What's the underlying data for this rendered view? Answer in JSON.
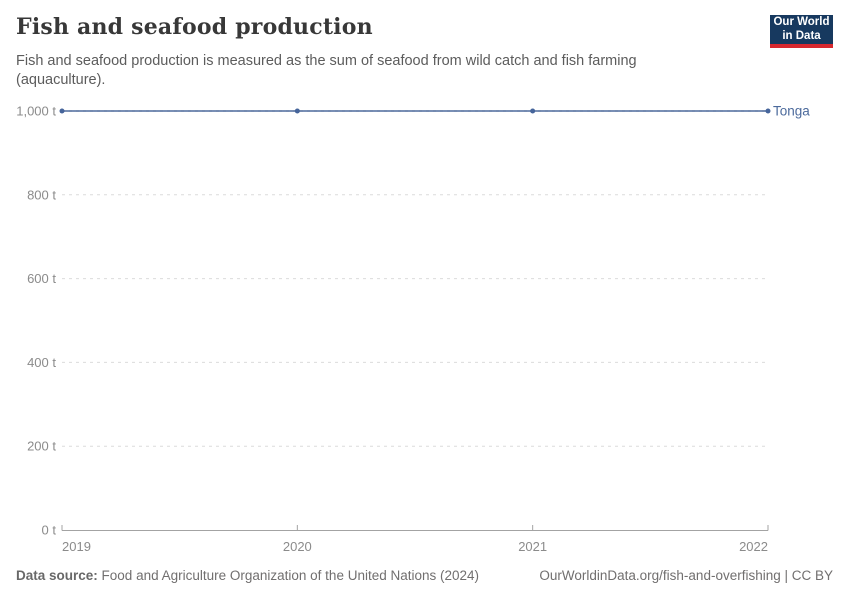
{
  "header": {
    "title": "Fish and seafood production",
    "subtitle": "Fish and seafood production is measured as the sum of seafood from wild catch and fish farming (aquaculture).",
    "logo": {
      "line1": "Our World",
      "line2": "in Data",
      "bg": "#17395f",
      "accent": "#d7282f"
    }
  },
  "chart_data": {
    "type": "line",
    "title": "Fish and seafood production",
    "x": [
      2019,
      2020,
      2021,
      2022
    ],
    "xticks": [
      "2019",
      "2020",
      "2021",
      "2022"
    ],
    "series": [
      {
        "name": "Tonga",
        "values": [
          1000,
          1000,
          1000,
          1000
        ],
        "color": "#4C6A9C",
        "point_color": "#46659b"
      }
    ],
    "xlabel": "",
    "ylabel": "",
    "ylim": [
      0,
      1000
    ],
    "yticks": [
      {
        "value": 0,
        "label": "0 t"
      },
      {
        "value": 200,
        "label": "200 t"
      },
      {
        "value": 400,
        "label": "400 t"
      },
      {
        "value": 600,
        "label": "600 t"
      },
      {
        "value": 800,
        "label": "800 t"
      },
      {
        "value": 1000,
        "label": "1,000 t"
      }
    ],
    "grid": "horizontal-dashed",
    "grid_color": "#dcdcdc",
    "axis_color": "#a3a3a3",
    "tick_label_color": "#8b8b8b",
    "legend": "inline-end-label"
  },
  "footer": {
    "datasource_label": "Data source:",
    "datasource_value": "Food and Agriculture Organization of the United Nations (2024)",
    "link": "OurWorldinData.org/fish-and-overfishing | CC BY"
  }
}
